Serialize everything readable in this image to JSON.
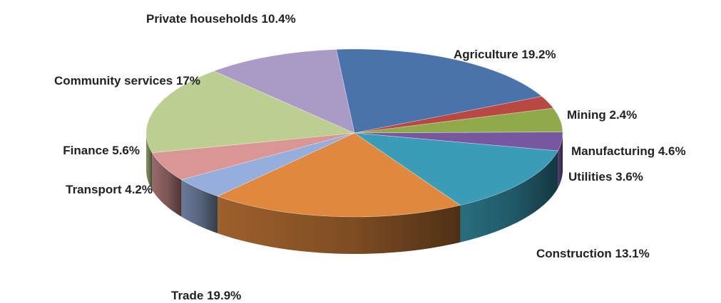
{
  "chart_data": {
    "type": "pie",
    "three_d": true,
    "start_angle_deg": -95,
    "direction": "clockwise",
    "legend": "none",
    "slices": [
      {
        "name": "Agriculture",
        "value": 19.2,
        "label": "Agriculture 19.2%",
        "color": "#4A73AC"
      },
      {
        "name": "Mining",
        "value": 2.4,
        "label": "Mining 2.4%",
        "color": "#B94742"
      },
      {
        "name": "Manufacturing",
        "value": 4.6,
        "label": "Manufacturing 4.6%",
        "color": "#8EAA4A"
      },
      {
        "name": "Utilities",
        "value": 3.6,
        "label": "Utilities 3.6%",
        "color": "#7657A0"
      },
      {
        "name": "Construction",
        "value": 13.1,
        "label": "Construction 13.1%",
        "color": "#3A9CB6"
      },
      {
        "name": "Trade",
        "value": 19.9,
        "label": "Trade 19.9%",
        "color": "#E0883E"
      },
      {
        "name": "Transport",
        "value": 4.2,
        "label": "Transport 4.2%",
        "color": "#96AEDB"
      },
      {
        "name": "Finance",
        "value": 5.6,
        "label": "Finance 5.6%",
        "color": "#D99695"
      },
      {
        "name": "Community services",
        "value": 17,
        "label": "Community services 17%",
        "color": "#BCCF90"
      },
      {
        "name": "Private households",
        "value": 10.4,
        "label": "Private households 10.4%",
        "color": "#A99BC6"
      }
    ]
  }
}
